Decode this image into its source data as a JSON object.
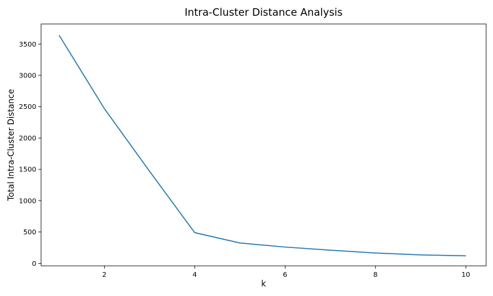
{
  "chart_data": {
    "type": "line",
    "title": "Intra-Cluster Distance Analysis",
    "xlabel": "k",
    "ylabel": "Total Intra-Cluster Distance",
    "x": [
      1,
      2,
      3,
      4,
      5,
      6,
      7,
      8,
      9,
      10
    ],
    "series": [
      {
        "values": [
          3640,
          2470,
          1470,
          490,
          325,
          260,
          210,
          165,
          135,
          120
        ],
        "color": "#1f77b4"
      }
    ],
    "xlim": [
      0.6,
      10.45
    ],
    "ylim": [
      -40,
      3820
    ],
    "xticks": [
      2,
      4,
      6,
      8,
      10
    ],
    "yticks": [
      0,
      500,
      1000,
      1500,
      2000,
      2500,
      3000,
      3500
    ],
    "grid": false,
    "legend": "none"
  }
}
